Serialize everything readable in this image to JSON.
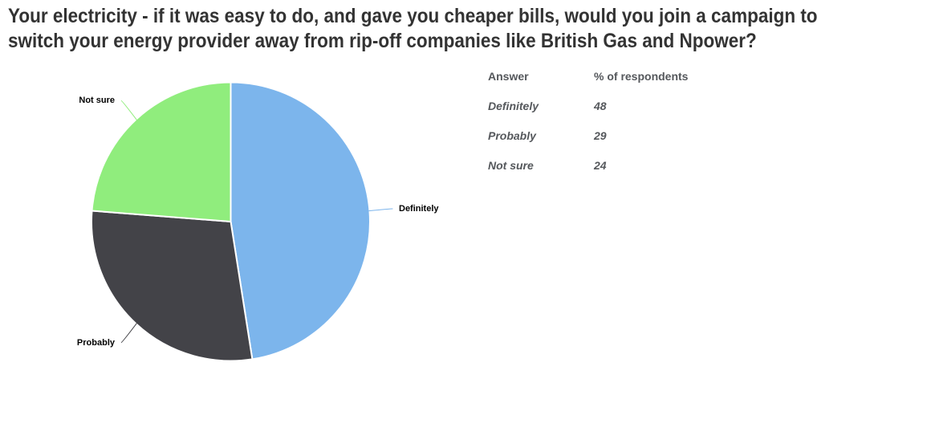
{
  "title": {
    "text": "Your electricity - if it was easy to do, and gave you cheaper bills, would you join a campaign to switch your energy provider away from rip-off companies like British Gas and Npower?",
    "line1": "Your electricity - if it was easy to do, and gave you cheaper bills, would you join a campaign to",
    "line2": "switch your energy provider away from rip-off companies like British Gas and Npower?"
  },
  "chart_data": {
    "type": "pie",
    "title": "Your electricity - if it was easy to do, and gave you cheaper bills, would you join a campaign to switch your energy provider away from rip-off companies like British Gas and Npower?",
    "labels": [
      "Definitely",
      "Probably",
      "Not sure"
    ],
    "values": [
      48,
      29,
      24
    ],
    "value_unit": "% of respondents",
    "colors": [
      "#7cb5ec",
      "#434348",
      "#90ed7d"
    ],
    "start_angle_deg": 0,
    "direction": "clockwise",
    "data_labels": "outside with leader lines",
    "legend": "none"
  },
  "table": {
    "headers": [
      "Answer",
      "% of respondents"
    ],
    "rows": [
      {
        "answer": "Definitely",
        "percent": "48"
      },
      {
        "answer": "Probably",
        "percent": "29"
      },
      {
        "answer": "Not sure",
        "percent": "24"
      }
    ]
  },
  "colors": {
    "background": "#ffffff",
    "title_text": "#333333",
    "table_text": "#55585c",
    "label_text": "#000000",
    "slice_border": "#ffffff"
  }
}
